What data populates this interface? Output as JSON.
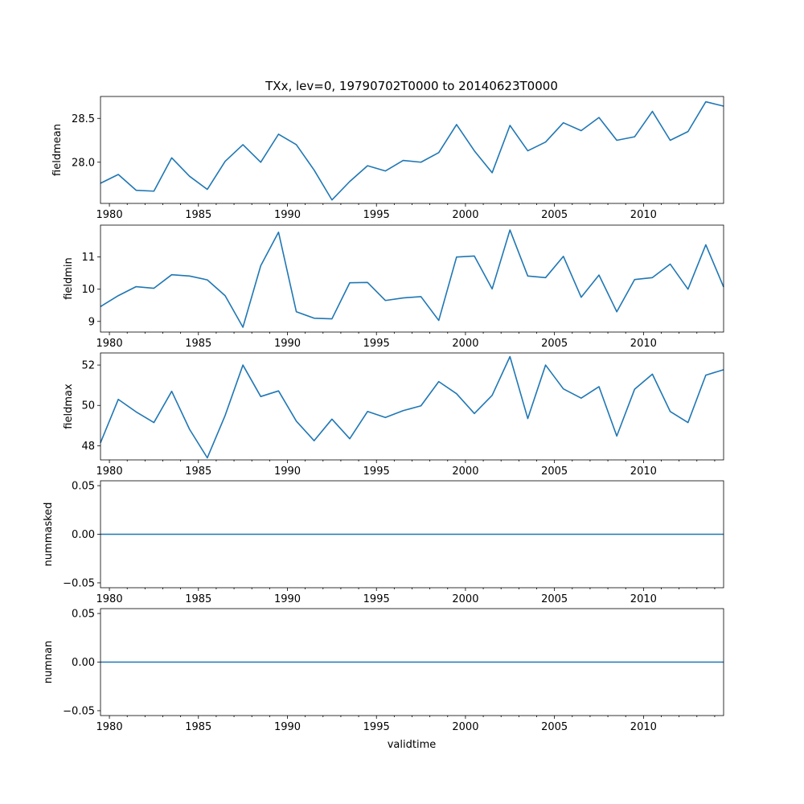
{
  "figure": {
    "title": "TXx, lev=0, 19790702T0000 to 20140623T0000",
    "xlabel": "validtime"
  },
  "chart_data": [
    {
      "type": "line",
      "ylabel": "fieldmean",
      "xlim": [
        1979.5,
        2014.5
      ],
      "ylim": [
        27.53,
        28.75
      ],
      "yticks": [
        28.0,
        28.5
      ],
      "ytick_labels": [
        "28.0",
        "28.5"
      ],
      "xticks": [
        1980,
        1985,
        1990,
        1995,
        2000,
        2005,
        2010
      ],
      "xtick_labels": [
        "1980",
        "1985",
        "1990",
        "1995",
        "2000",
        "2005",
        "2010"
      ],
      "color": "#1f77b4",
      "x": [
        1979.5,
        1980.5,
        1981.5,
        1982.5,
        1983.5,
        1984.5,
        1985.5,
        1986.5,
        1987.5,
        1988.5,
        1989.5,
        1990.5,
        1991.5,
        1992.5,
        1993.5,
        1994.5,
        1995.5,
        1996.5,
        1997.5,
        1998.5,
        1999.5,
        2000.5,
        2001.5,
        2002.5,
        2003.5,
        2004.5,
        2005.5,
        2006.5,
        2007.5,
        2008.5,
        2009.5,
        2010.5,
        2011.5,
        2012.5,
        2013.5,
        2014.5
      ],
      "y": [
        27.76,
        27.86,
        27.68,
        27.67,
        28.05,
        27.84,
        27.69,
        28.01,
        28.2,
        28.0,
        28.32,
        28.2,
        27.91,
        27.57,
        27.78,
        27.96,
        27.9,
        28.02,
        28.0,
        28.11,
        28.43,
        28.13,
        27.88,
        28.42,
        28.13,
        28.23,
        28.45,
        28.36,
        28.51,
        28.25,
        28.29,
        28.58,
        28.25,
        28.35,
        28.69,
        28.64
      ]
    },
    {
      "type": "line",
      "ylabel": "fieldmin",
      "xlim": [
        1979.5,
        2014.5
      ],
      "ylim": [
        8.67,
        11.99
      ],
      "yticks": [
        9,
        10,
        11
      ],
      "ytick_labels": [
        "9",
        "10",
        "11"
      ],
      "xticks": [
        1980,
        1985,
        1990,
        1995,
        2000,
        2005,
        2010
      ],
      "xtick_labels": [
        "1980",
        "1985",
        "1990",
        "1995",
        "2000",
        "2005",
        "2010"
      ],
      "color": "#1f77b4",
      "x": [
        1979.5,
        1980.5,
        1981.5,
        1982.5,
        1983.5,
        1984.5,
        1985.5,
        1986.5,
        1987.5,
        1988.5,
        1989.5,
        1990.5,
        1991.5,
        1992.5,
        1993.5,
        1994.5,
        1995.5,
        1996.5,
        1997.5,
        1998.5,
        1999.5,
        2000.5,
        2001.5,
        2002.5,
        2003.5,
        2004.5,
        2005.5,
        2006.5,
        2007.5,
        2008.5,
        2009.5,
        2010.5,
        2011.5,
        2012.5,
        2013.5,
        2014.5
      ],
      "y": [
        9.46,
        9.8,
        10.08,
        10.03,
        10.45,
        10.41,
        10.29,
        9.8,
        8.82,
        10.73,
        11.77,
        9.3,
        9.1,
        9.08,
        10.2,
        10.21,
        9.65,
        9.73,
        9.77,
        9.03,
        11.0,
        11.03,
        10.01,
        11.84,
        10.41,
        10.36,
        11.02,
        9.75,
        10.44,
        9.3,
        10.3,
        10.36,
        10.78,
        10.0,
        11.38,
        10.07
      ]
    },
    {
      "type": "line",
      "ylabel": "fieldmax",
      "xlim": [
        1979.5,
        2014.5
      ],
      "ylim": [
        47.3,
        52.6
      ],
      "yticks": [
        48,
        50,
        52
      ],
      "ytick_labels": [
        "48",
        "50",
        "52"
      ],
      "xticks": [
        1980,
        1985,
        1990,
        1995,
        2000,
        2005,
        2010
      ],
      "xtick_labels": [
        "1980",
        "1985",
        "1990",
        "1995",
        "2000",
        "2005",
        "2010"
      ],
      "color": "#1f77b4",
      "x": [
        1979.5,
        1980.5,
        1981.5,
        1982.5,
        1983.5,
        1984.5,
        1985.5,
        1986.5,
        1987.5,
        1988.5,
        1989.5,
        1990.5,
        1991.5,
        1992.5,
        1993.5,
        1994.5,
        1995.5,
        1996.5,
        1997.5,
        1998.5,
        1999.5,
        2000.5,
        2001.5,
        2002.5,
        2003.5,
        2004.5,
        2005.5,
        2006.5,
        2007.5,
        2008.5,
        2009.5,
        2010.5,
        2011.5,
        2012.5,
        2013.5,
        2014.5
      ],
      "y": [
        48.15,
        50.3,
        49.68,
        49.15,
        50.7,
        48.82,
        47.4,
        49.5,
        52.0,
        50.44,
        50.72,
        49.22,
        48.25,
        49.32,
        48.35,
        49.7,
        49.4,
        49.74,
        49.98,
        51.18,
        50.58,
        49.6,
        50.5,
        52.42,
        49.35,
        52.0,
        50.82,
        50.36,
        50.93,
        48.48,
        50.8,
        51.55,
        49.7,
        49.15,
        51.5,
        51.77
      ]
    },
    {
      "type": "line",
      "ylabel": "nummasked",
      "xlim": [
        1979.5,
        2014.5
      ],
      "ylim": [
        -0.055,
        0.055
      ],
      "yticks": [
        -0.05,
        0.0,
        0.05
      ],
      "ytick_labels": [
        "−0.05",
        "0.00",
        "0.05"
      ],
      "xticks": [
        1980,
        1985,
        1990,
        1995,
        2000,
        2005,
        2010
      ],
      "xtick_labels": [
        "1980",
        "1985",
        "1990",
        "1995",
        "2000",
        "2005",
        "2010"
      ],
      "color": "#1f77b4",
      "x": [
        1979.5,
        2014.5
      ],
      "y": [
        0,
        0
      ]
    },
    {
      "type": "line",
      "ylabel": "numnan",
      "xlim": [
        1979.5,
        2014.5
      ],
      "ylim": [
        -0.055,
        0.055
      ],
      "yticks": [
        -0.05,
        0.0,
        0.05
      ],
      "ytick_labels": [
        "−0.05",
        "0.00",
        "0.05"
      ],
      "xticks": [
        1980,
        1985,
        1990,
        1995,
        2000,
        2005,
        2010
      ],
      "xtick_labels": [
        "1980",
        "1985",
        "1990",
        "1995",
        "2000",
        "2005",
        "2010"
      ],
      "color": "#1f77b4",
      "x": [
        1979.5,
        2014.5
      ],
      "y": [
        0,
        0
      ]
    }
  ]
}
